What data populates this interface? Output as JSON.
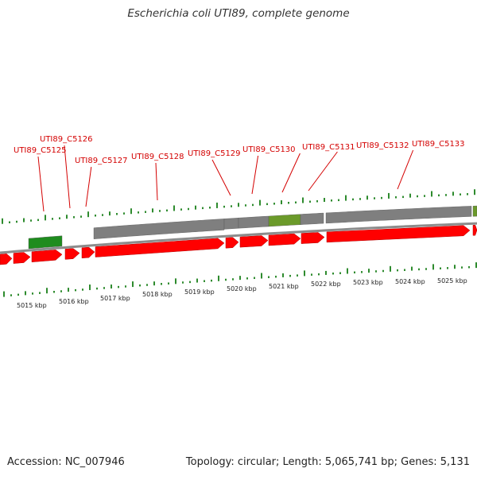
{
  "header": {
    "title": "Escherichia coli UTI89, complete genome"
  },
  "footer": {
    "accession": "Accession: NC_007946",
    "summary": "Topology: circular; Length: 5,065,741 bp; Genes: 5,131"
  },
  "colors": {
    "gene_label": "#d40000",
    "cds_forward": "#ff0000",
    "feature_gray": "#7f7f7f",
    "feature_green": "#1e8c1e",
    "feature_olive": "#6b9a2a",
    "tick_green": "#2e8b2e",
    "backbone": "#8c8c8c"
  },
  "genes": [
    {
      "label": "UTI89_C5125"
    },
    {
      "label": "UTI89_C5126"
    },
    {
      "label": "UTI89_C5127"
    },
    {
      "label": "UTI89_C5128"
    },
    {
      "label": "UTI89_C5129"
    },
    {
      "label": "UTI89_C5130"
    },
    {
      "label": "UTI89_C5131"
    },
    {
      "label": "UTI89_C5132"
    },
    {
      "label": "UTI89_C5133"
    }
  ],
  "kbp_ticks": [
    {
      "label": "5015 kbp"
    },
    {
      "label": "5016 kbp"
    },
    {
      "label": "5017 kbp"
    },
    {
      "label": "5018 kbp"
    },
    {
      "label": "5019 kbp"
    },
    {
      "label": "5020 kbp"
    },
    {
      "label": "5021 kbp"
    },
    {
      "label": "5022 kbp"
    },
    {
      "label": "5023 kbp"
    },
    {
      "label": "5024 kbp"
    },
    {
      "label": "5025 kbp"
    }
  ]
}
